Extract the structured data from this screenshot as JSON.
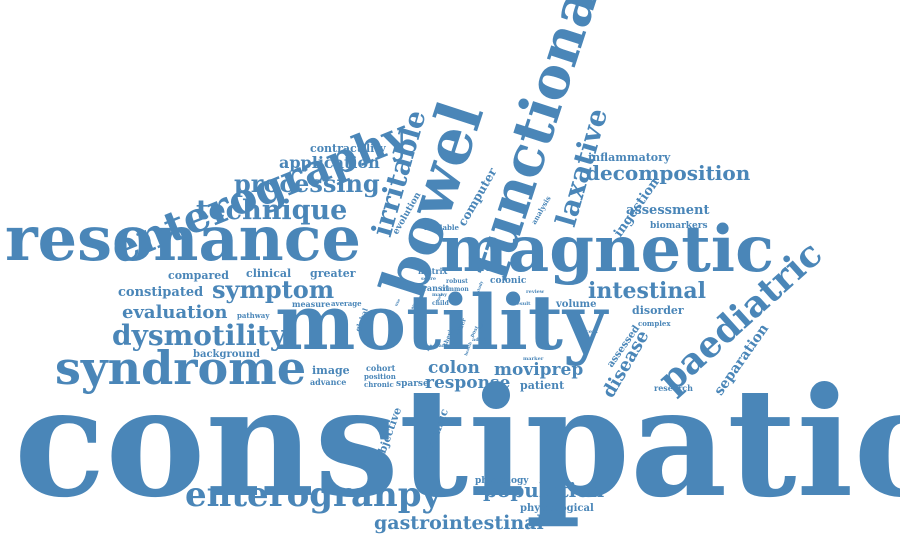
{
  "color": "#4a86b8",
  "words": [
    {
      "id": "constipation",
      "text": "constipation",
      "vertical": false
    },
    {
      "id": "motility",
      "text": "motility",
      "vertical": false
    },
    {
      "id": "resonance",
      "text": "resonance",
      "vertical": false
    },
    {
      "id": "magnetic",
      "text": "magnetic",
      "vertical": false
    },
    {
      "id": "bowel",
      "text": "bowel",
      "vertical": true
    },
    {
      "id": "functional",
      "text": "functional",
      "vertical": true
    },
    {
      "id": "syndrome",
      "text": "syndrome",
      "vertical": false
    },
    {
      "id": "enterography",
      "text": "enterography",
      "vertical": true
    },
    {
      "id": "enterograhpy",
      "text": "enterograhpy",
      "vertical": false
    },
    {
      "id": "paediatric",
      "text": "paediatric",
      "vertical": true
    },
    {
      "id": "irritable",
      "text": "irritable",
      "vertical": true
    },
    {
      "id": "laxative",
      "text": "laxative",
      "vertical": true
    },
    {
      "id": "dysmotility",
      "text": "dysmotility",
      "vertical": false
    },
    {
      "id": "technique",
      "text": "technique",
      "vertical": false
    },
    {
      "id": "processing",
      "text": "processing",
      "vertical": false
    },
    {
      "id": "symptom",
      "text": "symptom",
      "vertical": false
    },
    {
      "id": "intestinal",
      "text": "intestinal",
      "vertical": false
    },
    {
      "id": "decomposition",
      "text": "decomposition",
      "vertical": false
    },
    {
      "id": "population",
      "text": "population",
      "vertical": false
    },
    {
      "id": "gastrointestinal",
      "text": "gastrointestinal",
      "vertical": false
    },
    {
      "id": "response",
      "text": "response",
      "vertical": false
    },
    {
      "id": "moviprep",
      "text": "moviprep",
      "vertical": false
    },
    {
      "id": "colon",
      "text": "colon",
      "vertical": false
    },
    {
      "id": "evaluation",
      "text": "evaluation",
      "vertical": false
    },
    {
      "id": "disease",
      "text": "disease",
      "vertical": true
    },
    {
      "id": "application",
      "text": "application",
      "vertical": false
    },
    {
      "id": "constipated",
      "text": "constipated",
      "vertical": false
    },
    {
      "id": "computer",
      "text": "computer",
      "vertical": true
    },
    {
      "id": "ingestion",
      "text": "ingestion",
      "vertical": true
    },
    {
      "id": "assessment",
      "text": "assessment",
      "vertical": false
    },
    {
      "id": "separation",
      "text": "separation",
      "vertical": true
    },
    {
      "id": "inflammatory",
      "text": "inflammatory",
      "vertical": false
    },
    {
      "id": "contractility",
      "text": "contractility",
      "vertical": false
    },
    {
      "id": "compared",
      "text": "compared",
      "vertical": false
    },
    {
      "id": "clinical",
      "text": "clinical",
      "vertical": false
    },
    {
      "id": "greater",
      "text": "greater",
      "vertical": false
    },
    {
      "id": "image",
      "text": "image",
      "vertical": false
    },
    {
      "id": "patient",
      "text": "patient",
      "vertical": false
    },
    {
      "id": "background",
      "text": "background",
      "vertical": false
    },
    {
      "id": "objective",
      "text": "objective",
      "vertical": true
    },
    {
      "id": "dynamic",
      "text": "dynamic",
      "vertical": true
    },
    {
      "id": "physiological",
      "text": "physiological",
      "vertical": false
    },
    {
      "id": "physiology",
      "text": "physiology",
      "vertical": false
    },
    {
      "id": "volume",
      "text": "volume",
      "vertical": false
    },
    {
      "id": "disorder",
      "text": "disorder",
      "vertical": false
    },
    {
      "id": "biomarkers",
      "text": "biomarkers",
      "vertical": false
    },
    {
      "id": "evolution",
      "text": "evolution",
      "vertical": true
    },
    {
      "id": "assessed",
      "text": "assessed",
      "vertical": true
    },
    {
      "id": "research",
      "text": "research",
      "vertical": false
    },
    {
      "id": "cohort",
      "text": "cohort",
      "vertical": false
    },
    {
      "id": "position",
      "text": "position",
      "vertical": false
    },
    {
      "id": "chronic",
      "text": "chronic",
      "vertical": false
    },
    {
      "id": "sparse",
      "text": "sparse",
      "vertical": false
    },
    {
      "id": "advance",
      "text": "advance",
      "vertical": false
    },
    {
      "id": "measure",
      "text": "measure",
      "vertical": false
    },
    {
      "id": "average",
      "text": "average",
      "vertical": false
    },
    {
      "id": "matrix",
      "text": "matrix",
      "vertical": false
    },
    {
      "id": "colonic",
      "text": "colonic",
      "vertical": false
    },
    {
      "id": "transit",
      "text": "transit",
      "vertical": false
    },
    {
      "id": "common",
      "text": "common",
      "vertical": false
    },
    {
      "id": "available",
      "text": "available",
      "vertical": false
    },
    {
      "id": "analysis",
      "text": "analysis",
      "vertical": true
    },
    {
      "id": "pathway",
      "text": "pathway",
      "vertical": false
    },
    {
      "id": "global",
      "text": "global",
      "vertical": true
    },
    {
      "id": "complex",
      "text": "complex",
      "vertical": false
    },
    {
      "id": "score",
      "text": "score",
      "vertical": false
    },
    {
      "id": "robust",
      "text": "robust",
      "vertical": false
    },
    {
      "id": "review",
      "text": "review",
      "vertical": false
    },
    {
      "id": "result",
      "text": "result",
      "vertical": false
    },
    {
      "id": "many",
      "text": "many",
      "vertical": false
    },
    {
      "id": "child",
      "text": "child",
      "vertical": false
    },
    {
      "id": "rank",
      "text": "rank",
      "vertical": false
    },
    {
      "id": "marker",
      "text": "marker",
      "vertical": false
    },
    {
      "id": "recent",
      "text": "recent",
      "vertical": false
    },
    {
      "id": "differ",
      "text": "differ",
      "vertical": true
    },
    {
      "id": "thesis",
      "text": "thesis",
      "vertical": true
    },
    {
      "id": "post",
      "text": "post",
      "vertical": true
    },
    {
      "id": "adult",
      "text": "adult",
      "vertical": false
    },
    {
      "id": "study",
      "text": "study",
      "vertical": true
    },
    {
      "id": "area",
      "text": "area",
      "vertical": true
    },
    {
      "id": "health",
      "text": "health",
      "vertical": true
    },
    {
      "id": "use",
      "text": "use",
      "vertical": true
    },
    {
      "id": "new",
      "text": "new",
      "vertical": true
    },
    {
      "id": "low",
      "text": "low",
      "vertical": true
    },
    {
      "id": "may",
      "text": "may",
      "vertical": true
    }
  ]
}
